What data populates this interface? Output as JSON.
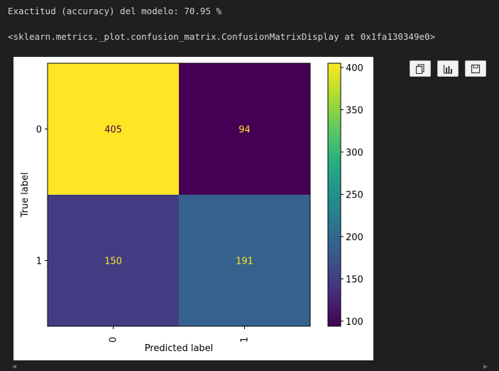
{
  "output": {
    "accuracy_text": "Exactitud (accuracy) del modelo: 70.95 %",
    "repr_text": "<sklearn.metrics._plot.confusion_matrix.ConfusionMatrixDisplay at 0x1fa130349e0>"
  },
  "toolbar": {
    "buttons": [
      {
        "name": "copy-button",
        "icon": "copy-icon"
      },
      {
        "name": "chart-button",
        "icon": "bar-chart-icon"
      },
      {
        "name": "save-button",
        "icon": "save-icon"
      }
    ]
  },
  "chart_data": {
    "type": "heatmap",
    "xlabel": "Predicted label",
    "ylabel": "True label",
    "x_categories": [
      "0",
      "1"
    ],
    "y_categories": [
      "0",
      "1"
    ],
    "matrix": [
      [
        405,
        94
      ],
      [
        150,
        191
      ]
    ],
    "colormap": "viridis",
    "colorbar": {
      "range": [
        94,
        405
      ],
      "ticks": [
        100,
        150,
        200,
        250,
        300,
        350,
        400
      ]
    },
    "text_colors": {
      "light_cell": "#440154",
      "dark_cell": "#fde725"
    }
  }
}
